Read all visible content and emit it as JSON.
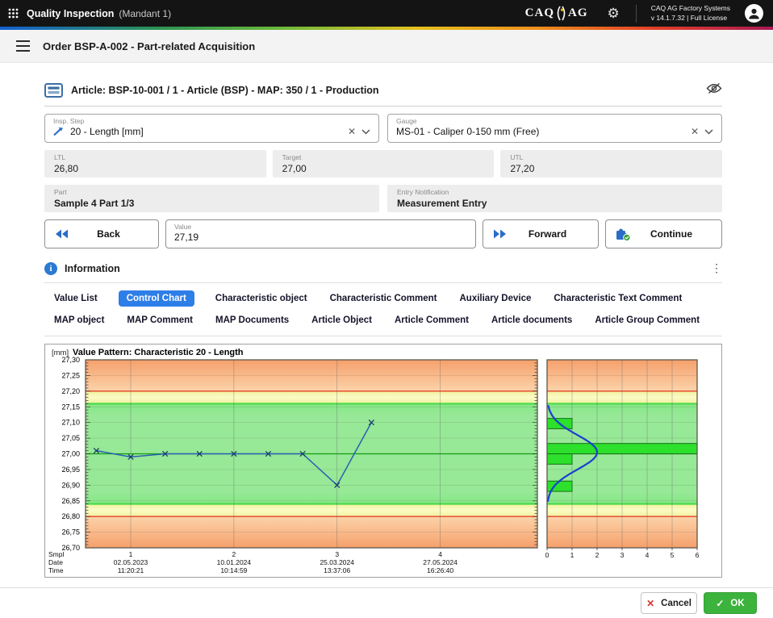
{
  "app_bar": {
    "title": "Quality Inspection",
    "subtitle": "(Mandant 1)",
    "logo_left": "CAQ",
    "logo_right": "AG",
    "product_line1": "CAQ AG Factory Systems",
    "product_line2": "v 14.1.7.32  |  Full License"
  },
  "order_header": {
    "title": "Order BSP-A-002 - Part-related Acquisition"
  },
  "article_header": {
    "title": "Article: BSP-10-001 / 1 - Article (BSP) - MAP: 350 / 1 - Production"
  },
  "fields": {
    "insp_step": {
      "label": "Insp. Step",
      "value": "20 - Length [mm]"
    },
    "gauge": {
      "label": "Gauge",
      "value": "MS-01 - Caliper 0-150 mm (Free)"
    },
    "ltl": {
      "label": "LTL",
      "value": "26,80"
    },
    "target": {
      "label": "Target",
      "value": "27,00"
    },
    "utl": {
      "label": "UTL",
      "value": "27,20"
    },
    "part": {
      "label": "Part",
      "value": "Sample 4 Part 1/3"
    },
    "entry_notification": {
      "label": "Entry Notification",
      "value": "Measurement Entry"
    },
    "value_input": {
      "label": "Value",
      "value": "27,19"
    }
  },
  "actions": {
    "back": "Back",
    "forward": "Forward",
    "continue": "Continue",
    "cancel": "Cancel",
    "ok": "OK"
  },
  "information": {
    "title": "Information",
    "tabs": [
      {
        "label": "Value List",
        "selected": false
      },
      {
        "label": "Control Chart",
        "selected": true
      },
      {
        "label": "Characteristic object",
        "selected": false
      },
      {
        "label": "Characteristic Comment",
        "selected": false
      },
      {
        "label": "Auxiliary Device",
        "selected": false
      },
      {
        "label": "Characteristic Text Comment",
        "selected": false
      },
      {
        "label": "MAP object",
        "selected": false
      },
      {
        "label": "MAP Comment",
        "selected": false
      },
      {
        "label": "MAP Documents",
        "selected": false
      },
      {
        "label": "Article Object",
        "selected": false
      },
      {
        "label": "Article Comment",
        "selected": false
      },
      {
        "label": "Article documents",
        "selected": false
      },
      {
        "label": "Article Group Comment",
        "selected": false
      }
    ]
  },
  "chart_data": {
    "type": "line",
    "title": "Value Pattern: Characteristic 20 - Length",
    "unit_label": "[mm]",
    "ylim": [
      26.7,
      27.3
    ],
    "y_major_step": 0.05,
    "y_minor_step": 0.01,
    "utl": 27.2,
    "ltl": 26.8,
    "upper_warn": 27.16,
    "lower_warn": 26.84,
    "center": 27.0,
    "axis_rows": [
      "Smpl",
      "Date",
      "Time"
    ],
    "samples": [
      {
        "smpl": "1",
        "date": "02.05.2023",
        "time": "11:20:21",
        "values": [
          27.01,
          26.99,
          27.0
        ]
      },
      {
        "smpl": "2",
        "date": "10.01.2024",
        "time": "10:14:59",
        "values": [
          27.0,
          27.0,
          27.0
        ]
      },
      {
        "smpl": "3",
        "date": "25.03.2024",
        "time": "13:37:06",
        "values": [
          27.0,
          26.9,
          27.1
        ]
      },
      {
        "smpl": "4",
        "date": "27.05.2024",
        "time": "16:26:40",
        "values": []
      }
    ],
    "histogram": {
      "xlim": [
        0,
        6
      ],
      "x_ticks": [
        0,
        1,
        2,
        3,
        4,
        5,
        6
      ],
      "bars": [
        {
          "from": 27.08,
          "to": 27.113,
          "count": 1
        },
        {
          "from": 27.0,
          "to": 27.033,
          "count": 6
        },
        {
          "from": 26.967,
          "to": 27.0,
          "count": 1
        },
        {
          "from": 26.88,
          "to": 26.913,
          "count": 1
        }
      ],
      "curve": {
        "mean": 27.005,
        "sigma": 0.055,
        "peak": 2.0
      }
    }
  },
  "colors": {
    "accent_blue": "#2e7ee8",
    "ok_green": "#3cb33c",
    "cancel_red": "#cf3b30",
    "limit_red": "#e8402a",
    "warn_green_line": "#46d946",
    "center_green_line": "#0f9f0f",
    "zone_orange_dark": "#f5a06c",
    "zone_orange_light": "#fcd3a9",
    "zone_yellow": "#f7f7ac",
    "zone_green": "#97e897",
    "bar_green": "#2ce02c",
    "series_blue": "#2a5fb4",
    "curve_blue": "#1b3fd0"
  }
}
